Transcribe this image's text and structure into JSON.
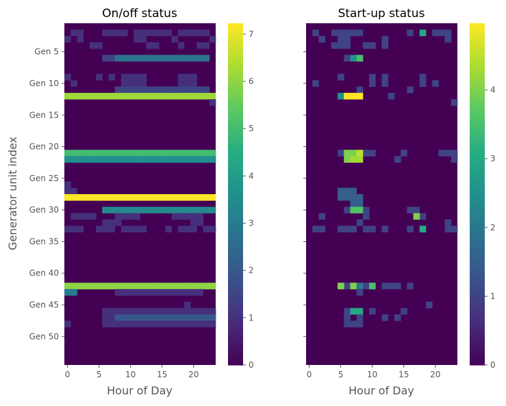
{
  "figure": {
    "ylabel": "Generator unit index"
  },
  "chart_data": [
    {
      "type": "heatmap",
      "title": "On/off status",
      "xlabel": "Hour of Day",
      "ylabel": "Generator unit index",
      "x_ticks": [
        0,
        5,
        10,
        15,
        20
      ],
      "y_ticks": [
        "Gen 5",
        "Gen 10",
        "Gen 15",
        "Gen 20",
        "Gen 25",
        "Gen 30",
        "Gen 35",
        "Gen 40",
        "Gen 45",
        "Gen 50"
      ],
      "colormap": "viridis",
      "colorbar_ticks": [
        0,
        1,
        2,
        3,
        4,
        5,
        6,
        7
      ],
      "vmin": 0,
      "vmax": 7.23,
      "hours": 24,
      "units": 54,
      "background_value": 0,
      "cells": [
        [
          1,
          [
            1,
            2,
            9,
            11,
            19,
            20
          ],
          1.0
        ],
        [
          1,
          [
            6,
            7,
            8,
            12,
            13,
            14,
            15,
            16,
            18,
            19,
            20,
            21,
            22
          ],
          1.0
        ],
        [
          2,
          [
            0,
            2,
            11,
            12,
            17,
            23
          ],
          1.0
        ],
        [
          3,
          [
            4,
            5,
            13,
            14,
            18,
            21,
            22
          ],
          1.0
        ],
        [
          5,
          [
            6,
            7
          ],
          1.5
        ],
        [
          5,
          [
            8,
            9,
            10,
            11,
            12,
            13,
            14,
            15,
            16,
            17,
            18,
            19,
            20,
            21,
            22
          ],
          2.8
        ],
        [
          8,
          [
            0,
            5,
            7,
            9,
            10,
            11,
            12,
            18,
            19,
            20
          ],
          1.0
        ],
        [
          9,
          [
            1,
            9,
            10,
            11,
            12,
            18,
            19,
            20
          ],
          1.0
        ],
        [
          10,
          [
            8,
            9,
            10,
            11,
            12,
            13,
            14,
            15,
            16,
            17,
            18,
            19,
            20,
            21,
            22
          ],
          1.5
        ],
        [
          11,
          [
            0,
            1,
            2,
            3,
            4,
            5,
            6,
            7,
            8,
            9,
            10,
            11,
            12,
            13,
            14,
            15,
            16,
            17,
            18,
            19,
            20,
            21,
            22,
            23
          ],
          6.2
        ],
        [
          12,
          [
            23
          ],
          1.0
        ],
        [
          20,
          [
            0,
            1,
            2,
            3,
            4,
            5,
            6,
            7,
            8,
            9,
            10,
            11,
            12,
            13,
            14,
            15,
            16,
            17,
            18,
            19,
            20,
            21,
            22,
            23
          ],
          5.0
        ],
        [
          21,
          [
            0,
            1,
            2,
            3,
            4,
            5,
            6,
            7,
            8,
            9,
            10,
            11,
            12,
            13,
            14,
            15,
            16,
            17,
            18,
            19,
            20,
            21,
            22,
            23
          ],
          3.6
        ],
        [
          25,
          [
            0
          ],
          1.0
        ],
        [
          26,
          [
            0,
            1
          ],
          1.0
        ],
        [
          27,
          [
            0,
            1,
            2,
            3,
            4,
            5,
            6,
            7,
            8,
            9,
            10,
            11,
            12,
            13,
            14,
            15,
            16,
            17,
            18,
            19,
            20,
            21,
            22,
            23
          ],
          7.2
        ],
        [
          29,
          [
            6,
            7,
            8,
            9,
            10,
            11,
            12,
            13,
            14,
            15,
            16,
            17,
            18,
            19,
            20,
            21,
            22,
            23
          ],
          3.4
        ],
        [
          30,
          [
            1,
            2,
            3,
            4,
            8,
            9,
            10,
            11,
            17,
            18,
            19,
            20,
            21
          ],
          1.0
        ],
        [
          31,
          [
            6,
            7,
            8,
            20,
            21
          ],
          1.0
        ],
        [
          32,
          [
            0,
            1,
            2,
            5,
            6,
            7,
            9,
            10,
            11,
            12,
            16,
            18,
            19,
            20,
            22,
            23
          ],
          1.0
        ],
        [
          41,
          [
            0,
            1,
            2,
            3,
            4,
            5,
            6,
            7,
            8,
            9,
            10,
            11,
            12,
            13,
            14,
            15,
            16,
            17,
            18,
            19,
            20,
            21,
            22,
            23
          ],
          6.0
        ],
        [
          42,
          [
            0,
            1
          ],
          3.0
        ],
        [
          42,
          [
            8,
            9,
            10,
            11,
            12,
            13,
            14,
            15,
            16,
            17,
            18,
            19,
            20,
            21
          ],
          1.0
        ],
        [
          44,
          [
            19
          ],
          1.0
        ],
        [
          45,
          [
            6,
            7,
            8,
            9,
            10,
            11,
            12,
            13,
            14,
            15,
            16,
            17,
            18,
            19,
            20,
            21,
            22,
            23
          ],
          1.0
        ],
        [
          46,
          [
            6,
            7
          ],
          1.0
        ],
        [
          46,
          [
            8,
            9,
            10,
            11,
            12,
            13,
            14,
            15,
            16,
            17,
            18,
            19,
            20,
            21,
            22,
            23
          ],
          2.0
        ],
        [
          47,
          [
            0
          ],
          1.0
        ],
        [
          47,
          [
            6,
            7,
            8,
            9,
            10,
            11,
            12,
            13,
            14,
            15,
            16,
            17,
            18,
            19,
            20,
            21,
            22,
            23
          ],
          1.0
        ]
      ]
    },
    {
      "type": "heatmap",
      "title": "Start-up status",
      "xlabel": "Hour of Day",
      "ylabel": "",
      "x_ticks": [
        0,
        5,
        10,
        15,
        20
      ],
      "y_ticks": [],
      "colormap": "viridis",
      "colorbar_ticks": [
        0,
        1,
        2,
        3,
        4
      ],
      "vmin": 0,
      "vmax": 4.97,
      "hours": 24,
      "units": 54,
      "background_value": 0,
      "cells": [
        [
          1,
          [
            1,
            4,
            5,
            6,
            7,
            8,
            16,
            20,
            21,
            22
          ],
          1.0
        ],
        [
          1,
          [
            18
          ],
          3.0
        ],
        [
          2,
          [
            2,
            5,
            6,
            12,
            22
          ],
          1.0
        ],
        [
          3,
          [
            4,
            5,
            6,
            9,
            10,
            12
          ],
          1.0
        ],
        [
          5,
          [
            6,
            8
          ],
          1.0
        ],
        [
          5,
          [
            7
          ],
          2.5
        ],
        [
          5,
          [
            8
          ],
          3.5
        ],
        [
          8,
          [
            5,
            10,
            12,
            18
          ],
          1.0
        ],
        [
          9,
          [
            1,
            10,
            12,
            18,
            20
          ],
          1.0
        ],
        [
          10,
          [
            8,
            16
          ],
          1.0
        ],
        [
          11,
          [
            5
          ],
          2.5
        ],
        [
          11,
          [
            6,
            7,
            8
          ],
          4.97
        ],
        [
          11,
          [
            13
          ],
          1.0
        ],
        [
          12,
          [
            23
          ],
          1.0
        ],
        [
          20,
          [
            5,
            9,
            10,
            15,
            21,
            22,
            23
          ],
          1.0
        ],
        [
          20,
          [
            6,
            7
          ],
          4.0
        ],
        [
          20,
          [
            8
          ],
          4.5
        ],
        [
          21,
          [
            6
          ],
          4.0
        ],
        [
          21,
          [
            7,
            8
          ],
          4.3
        ],
        [
          21,
          [
            14,
            23
          ],
          1.0
        ],
        [
          26,
          [
            5,
            6,
            7
          ],
          1.5
        ],
        [
          27,
          [
            5,
            6,
            7,
            8
          ],
          1.5
        ],
        [
          28,
          [
            7,
            8
          ],
          1.5
        ],
        [
          29,
          [
            6,
            9
          ],
          1.0
        ],
        [
          29,
          [
            7,
            8
          ],
          3.6
        ],
        [
          29,
          [
            16,
            17
          ],
          1.0
        ],
        [
          30,
          [
            2,
            9,
            18
          ],
          1.0
        ],
        [
          30,
          [
            17
          ],
          4.0
        ],
        [
          31,
          [
            8,
            22
          ],
          1.0
        ],
        [
          32,
          [
            1,
            2,
            5,
            6,
            7,
            9,
            10,
            12,
            16,
            22,
            23
          ],
          1.0
        ],
        [
          32,
          [
            18
          ],
          3.0
        ],
        [
          41,
          [
            6,
            9,
            12,
            13,
            14,
            16
          ],
          1.0
        ],
        [
          41,
          [
            5,
            7
          ],
          4.0
        ],
        [
          41,
          [
            8
          ],
          2.0
        ],
        [
          41,
          [
            10
          ],
          3.5
        ],
        [
          42,
          [
            8
          ],
          1.0
        ],
        [
          44,
          [
            19
          ],
          1.0
        ],
        [
          45,
          [
            6,
            10,
            15
          ],
          1.0
        ],
        [
          45,
          [
            7,
            8
          ],
          3.0
        ],
        [
          46,
          [
            6,
            8,
            12,
            14
          ],
          1.0
        ],
        [
          47,
          [
            6,
            7,
            8
          ],
          1.0
        ]
      ]
    }
  ]
}
